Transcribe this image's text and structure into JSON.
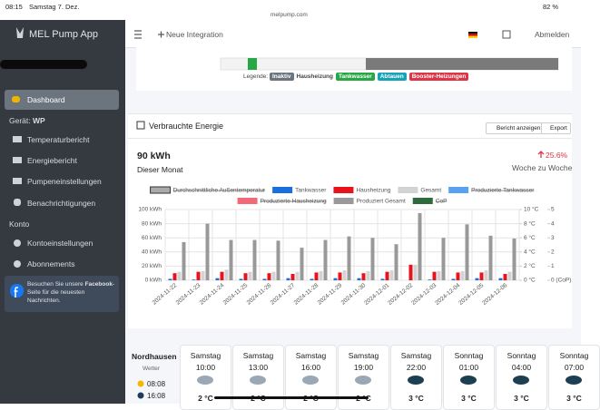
{
  "status_bar": {
    "time": "08:15",
    "date": "Samstag 7. Dez.",
    "url": "melpump.com",
    "battery": "82 %"
  },
  "sidebar": {
    "app_name": "MEL Pump App",
    "active": "Dashboard",
    "device_label": "Gerät:",
    "device": "WP",
    "menu": [
      "Temperaturbericht",
      "Energiebericht",
      "Pumpeneinstellungen",
      "Benachrichtigungen"
    ],
    "account_header": "Konto",
    "account_menu": [
      "Kontoeinstellungen",
      "Abonnements"
    ],
    "facebook_note": {
      "before": "Besuchen Sie unsere",
      "link": "Facebook",
      "after": "-Seite für die neuesten Nachrichten."
    }
  },
  "navbar": {
    "new_integration": "Neue Integration",
    "logout": "Abmelden"
  },
  "timeline_legend": {
    "label": "Legende:",
    "items": [
      "Inaktiv",
      "Hausheizung",
      "Tankwasser",
      "Abtauen",
      "Booster-Heizungen"
    ]
  },
  "energy_card": {
    "title": "Verbrauchte Energie",
    "buttons": [
      "Bericht anzeigen",
      "Export"
    ],
    "total": "90 kWh",
    "period": "Dieser Monat",
    "change": "25.6%",
    "change_period": "Woche zu Woche",
    "chart": {
      "type": "bar",
      "categories": [
        "2024-11-22",
        "2024-11-23",
        "2024-11-24",
        "2024-11-25",
        "2024-11-26",
        "2024-11-27",
        "2024-11-28",
        "2024-11-29",
        "2024-11-30",
        "2024-12-01",
        "2024-12-02",
        "2024-12-03",
        "2024-12-04",
        "2024-12-05",
        "2024-12-06"
      ],
      "series": [
        {
          "name": "Durchschnittliche Außentemperatur",
          "color": "#aaaaaa",
          "hidden": true
        },
        {
          "name": "Tankwasser",
          "color": "#1a6fe0",
          "values": [
            2,
            1,
            3,
            2,
            2,
            3,
            2,
            3,
            3,
            2,
            0,
            1,
            2,
            3,
            3
          ]
        },
        {
          "name": "Hausheizung",
          "color": "#e8141c",
          "values": [
            10,
            12,
            12,
            10,
            10,
            9,
            11,
            11,
            10,
            12,
            22,
            12,
            11,
            11,
            9
          ]
        },
        {
          "name": "Gesamt",
          "color": "#d3d3d3",
          "values": [
            12,
            13,
            15,
            12,
            12,
            12,
            13,
            14,
            13,
            14,
            22,
            13,
            13,
            14,
            12
          ]
        },
        {
          "name": "Produzierte Tankwasser",
          "color": "#5aa2f0",
          "hidden": true
        },
        {
          "name": "Produzierte Hausheizung",
          "color": "#f26a78",
          "hidden": true
        },
        {
          "name": "Produziert Gesamt",
          "color": "#999999",
          "values": [
            54,
            80,
            57,
            57,
            56,
            46,
            57,
            62,
            60,
            51,
            95,
            60,
            79,
            63,
            59
          ]
        },
        {
          "name": "CoP",
          "color": "#2e6b3a",
          "hidden": true
        }
      ],
      "ylim": [
        0,
        100
      ],
      "yticks": [
        {
          "value": 0,
          "label": "0 kWh"
        },
        {
          "value": 20,
          "label": "20 kWh"
        },
        {
          "value": 40,
          "label": "40 kWh"
        },
        {
          "value": 60,
          "label": "60 kWh"
        },
        {
          "value": 80,
          "label": "80 kWh"
        },
        {
          "value": 100,
          "label": "100 kWh"
        }
      ],
      "y2lim": [
        0,
        10
      ],
      "y2ticks": [
        {
          "value": 0,
          "label": "0 °C"
        },
        {
          "value": 2,
          "label": "2 °C"
        },
        {
          "value": 4,
          "label": "4 °C"
        },
        {
          "value": 6,
          "label": "6 °C"
        },
        {
          "value": 8,
          "label": "8 °C"
        },
        {
          "value": 10,
          "label": "10 °C"
        }
      ],
      "y3lim": [
        0,
        5
      ],
      "y3ticks": [
        {
          "value": 0,
          "label": "0 (CoP)"
        },
        1,
        2,
        3,
        4,
        5
      ],
      "grid": true
    }
  },
  "weather": {
    "location": "Nordhausen",
    "label": "Wetter",
    "sunrise": "08:08",
    "sunset": "16:08",
    "forecast": [
      {
        "day": "Samstag",
        "time": "10:00",
        "temp": "2 °C"
      },
      {
        "day": "Samstag",
        "time": "13:00",
        "temp": "2 °C"
      },
      {
        "day": "Samstag",
        "time": "16:00",
        "temp": "2 °C"
      },
      {
        "day": "Samstag",
        "time": "19:00",
        "temp": "2 °C"
      },
      {
        "day": "Samstag",
        "time": "22:00",
        "temp": "3 °C"
      },
      {
        "day": "Sonntag",
        "time": "01:00",
        "temp": "3 °C"
      },
      {
        "day": "Sonntag",
        "time": "04:00",
        "temp": "3 °C"
      },
      {
        "day": "Sonntag",
        "time": "07:00",
        "temp": "3 °C"
      }
    ]
  }
}
